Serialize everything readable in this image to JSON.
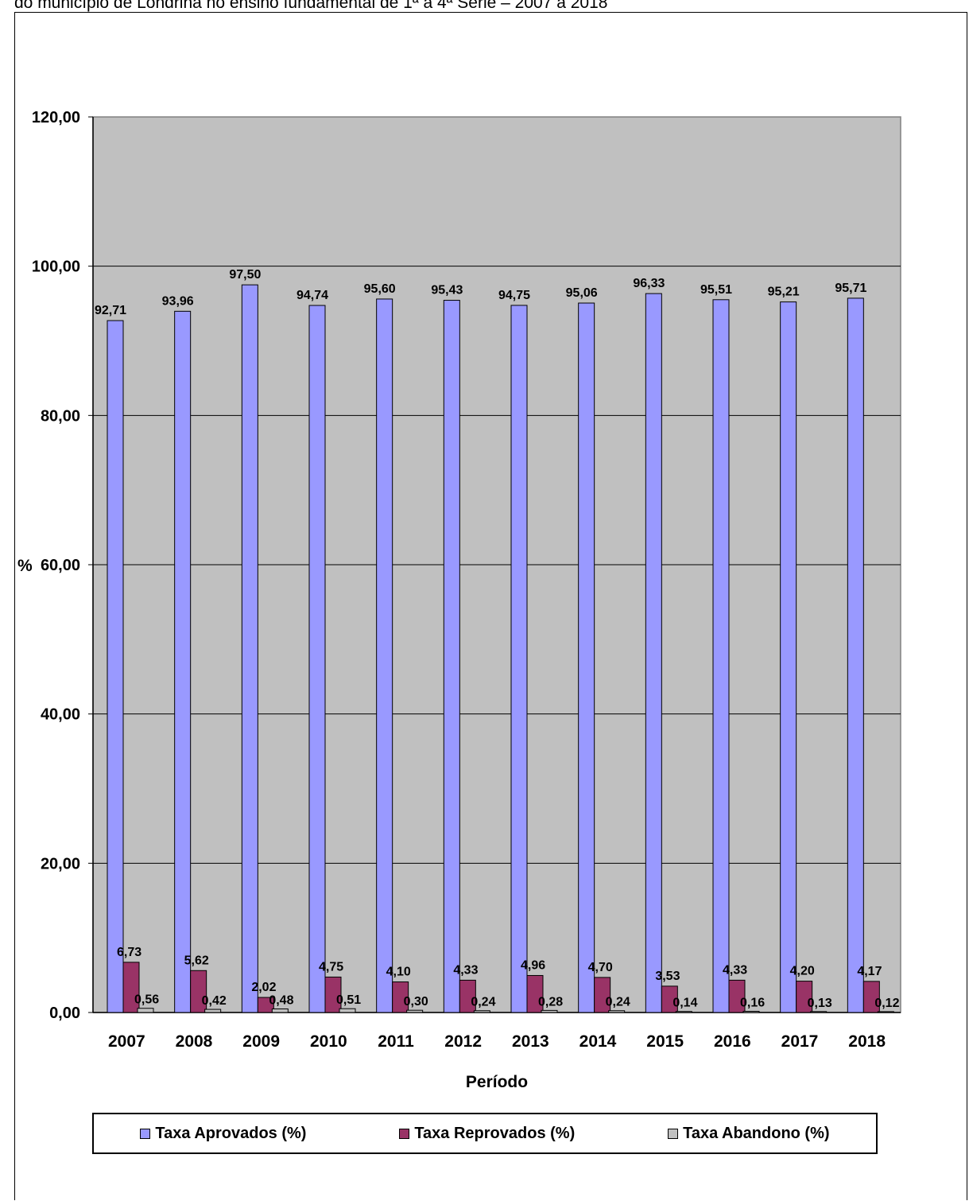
{
  "title": "do município de Londrina no ensino fundamental de 1ª a 4ª Série – 2007 a 2018",
  "chart_data": {
    "type": "bar",
    "categories": [
      "2007",
      "2008",
      "2009",
      "2010",
      "2011",
      "2012",
      "2013",
      "2014",
      "2015",
      "2016",
      "2017",
      "2018"
    ],
    "series": [
      {
        "name": "Taxa Aprovados (%)",
        "color": "#9999ff",
        "values": [
          92.71,
          93.96,
          97.5,
          94.74,
          95.6,
          95.43,
          94.75,
          95.06,
          96.33,
          95.51,
          95.21,
          95.71
        ],
        "labels": [
          "92,71",
          "93,96",
          "97,50",
          "94,74",
          "95,60",
          "95,43",
          "94,75",
          "95,06",
          "96,33",
          "95,51",
          "95,21",
          "95,71"
        ]
      },
      {
        "name": "Taxa Reprovados (%)",
        "color": "#993366",
        "values": [
          6.73,
          5.62,
          2.02,
          4.75,
          4.1,
          4.33,
          4.96,
          4.7,
          3.53,
          4.33,
          4.2,
          4.17
        ],
        "labels": [
          "6,73",
          "5,62",
          "2,02",
          "4,75",
          "4,10",
          "4,33",
          "4,96",
          "4,70",
          "3,53",
          "4,33",
          "4,20",
          "4,17"
        ]
      },
      {
        "name": "Taxa Abandono (%)",
        "color": "#c0c0c0",
        "values": [
          0.56,
          0.42,
          0.48,
          0.51,
          0.3,
          0.24,
          0.28,
          0.24,
          0.14,
          0.16,
          0.13,
          0.12
        ],
        "labels": [
          "0,56",
          "0,42",
          "0,48",
          "0,51",
          "0,30",
          "0,24",
          "0,28",
          "0,24",
          "0,14",
          "0,16",
          "0,13",
          "0,12"
        ]
      }
    ],
    "xlabel": "Período",
    "ylabel": "%",
    "ylim": [
      0,
      120
    ],
    "yticks": [
      "0,00",
      "20,00",
      "40,00",
      "60,00",
      "80,00",
      "100,00",
      "120,00"
    ],
    "plot_background": "#c0c0c0",
    "grid": true,
    "legend_position": "bottom"
  }
}
